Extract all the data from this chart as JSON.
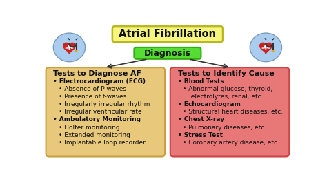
{
  "title": "Atrial Fibrillation",
  "title_bg": "#f5f580",
  "title_border": "#b8b820",
  "diagnosis_label": "Diagnosis",
  "diagnosis_bg": "#55dd33",
  "diagnosis_border": "#33aa11",
  "background_color": "#ffffff",
  "left_box": {
    "title": "Tests to Diagnose AF",
    "bg": "#e8c87a",
    "border": "#c8a040",
    "items": [
      {
        "text": "Electrocardiogram (ECG)",
        "bold": true,
        "indent": 0
      },
      {
        "text": "Absence of P waves",
        "bold": false,
        "indent": 1
      },
      {
        "text": "Presence of f-waves",
        "bold": false,
        "indent": 1
      },
      {
        "text": "Irregularly irregular rhythm",
        "bold": false,
        "indent": 1
      },
      {
        "text": "Irregular ventricular rate",
        "bold": false,
        "indent": 1
      },
      {
        "text": "Ambulatory Monitoring",
        "bold": true,
        "indent": 0
      },
      {
        "text": "Holter monitoring",
        "bold": false,
        "indent": 1
      },
      {
        "text": "Extended monitoring",
        "bold": false,
        "indent": 1
      },
      {
        "text": "Implantable loop recorder",
        "bold": false,
        "indent": 1
      }
    ]
  },
  "right_box": {
    "title": "Tests to Identify Cause",
    "bg": "#e87878",
    "border": "#cc4444",
    "items": [
      {
        "text": "Blood Tests",
        "bold": true,
        "indent": 0
      },
      {
        "text": "Abnormal glucose, thyroid,",
        "bold": false,
        "indent": 1
      },
      {
        "text": "electrolytes, renal, etc.",
        "bold": false,
        "indent": 1,
        "extra_indent": true
      },
      {
        "text": "Echocardiogram",
        "bold": true,
        "indent": 0
      },
      {
        "text": "Structural heart diseases, etc.",
        "bold": false,
        "indent": 1
      },
      {
        "text": "Chest X-ray",
        "bold": true,
        "indent": 0
      },
      {
        "text": "Pulmonary diseases, etc.",
        "bold": false,
        "indent": 1
      },
      {
        "text": "Stress Test",
        "bold": true,
        "indent": 0
      },
      {
        "text": "Coronary artery disease, etc.",
        "bold": false,
        "indent": 1
      }
    ]
  },
  "icon_bg": "#aaccee",
  "icon_border": "#7799bb"
}
